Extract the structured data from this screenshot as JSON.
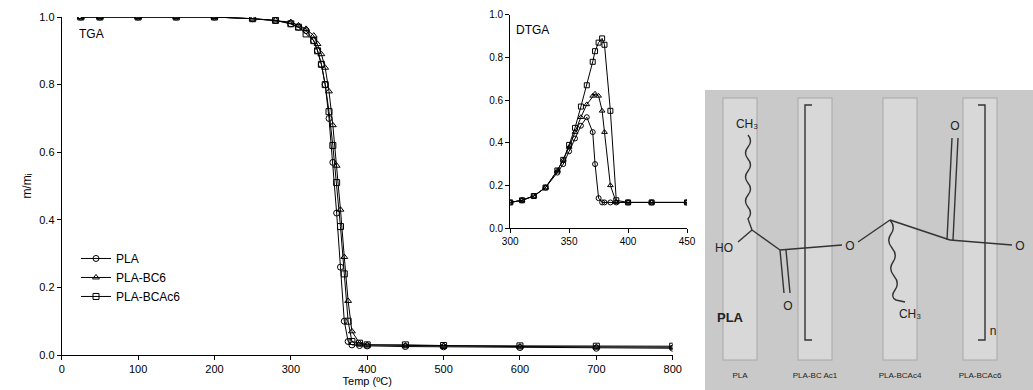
{
  "chart_data": [
    {
      "type": "scatter",
      "title": "TGA",
      "x_label": "Temp (ºC)",
      "y_label": "m/mᵢ",
      "xlim": [
        0,
        800
      ],
      "xticks": [
        0,
        100,
        200,
        300,
        400,
        500,
        600,
        700,
        800
      ],
      "ylim": [
        0,
        1
      ],
      "yticks": [
        {
          "value": 0,
          "label": "0.0"
        },
        0.2,
        0.4,
        0.6,
        0.8,
        {
          "value": 1,
          "label": "1.0"
        }
      ],
      "grid": false,
      "legend": "lower left",
      "series": [
        {
          "name": "PLA",
          "color": "#000000",
          "marker": "circle-open",
          "line_style": "solid",
          "x": [
            25,
            50,
            100,
            150,
            200,
            250,
            280,
            300,
            310,
            320,
            330,
            335,
            340,
            345,
            350,
            355,
            360,
            365,
            370,
            375,
            380,
            390,
            400,
            450,
            500,
            600,
            700,
            800
          ],
          "values": [
            1.0,
            1.0,
            1.0,
            1.0,
            1.0,
            0.995,
            0.99,
            0.98,
            0.97,
            0.96,
            0.93,
            0.9,
            0.86,
            0.8,
            0.7,
            0.57,
            0.42,
            0.26,
            0.1,
            0.04,
            0.03,
            0.028,
            0.027,
            0.025,
            0.024,
            0.022,
            0.02,
            0.02
          ]
        },
        {
          "name": "PLA-BC6",
          "color": "#000000",
          "marker": "triangle-up-open",
          "line_style": "solid",
          "x": [
            25,
            50,
            100,
            150,
            200,
            250,
            280,
            300,
            310,
            320,
            330,
            335,
            340,
            345,
            350,
            355,
            360,
            365,
            370,
            375,
            380,
            390,
            400,
            450,
            500,
            600,
            700,
            800
          ],
          "values": [
            1.0,
            1.0,
            1.0,
            1.0,
            1.0,
            0.995,
            0.99,
            0.985,
            0.975,
            0.965,
            0.945,
            0.92,
            0.89,
            0.85,
            0.78,
            0.68,
            0.56,
            0.43,
            0.29,
            0.16,
            0.07,
            0.035,
            0.03,
            0.028,
            0.027,
            0.025,
            0.024,
            0.023
          ]
        },
        {
          "name": "PLA-BCAc6",
          "color": "#000000",
          "marker": "square-open",
          "line_style": "solid",
          "x": [
            25,
            50,
            100,
            150,
            200,
            250,
            280,
            300,
            310,
            320,
            330,
            335,
            340,
            345,
            350,
            355,
            360,
            365,
            370,
            375,
            380,
            390,
            400,
            450,
            500,
            600,
            700,
            800
          ],
          "values": [
            1.0,
            1.0,
            1.0,
            1.0,
            1.0,
            0.995,
            0.99,
            0.98,
            0.97,
            0.95,
            0.93,
            0.9,
            0.86,
            0.8,
            0.72,
            0.62,
            0.51,
            0.38,
            0.24,
            0.1,
            0.04,
            0.035,
            0.03,
            0.03,
            0.028,
            0.027,
            0.026,
            0.026
          ]
        }
      ]
    },
    {
      "type": "scatter",
      "title": "DTGA",
      "xlim": [
        300,
        450
      ],
      "xticks": [
        300,
        350,
        400,
        450
      ],
      "ylim": [
        0,
        1
      ],
      "yticks": [
        {
          "value": 0,
          "label": "0.0"
        },
        0.2,
        0.4,
        0.6,
        0.8,
        {
          "value": 1,
          "label": "1.0"
        }
      ],
      "grid": false,
      "series": [
        {
          "name": "PLA",
          "color": "#000000",
          "marker": "circle-open",
          "line_style": "solid",
          "x": [
            300,
            310,
            320,
            330,
            340,
            345,
            350,
            355,
            360,
            365,
            370,
            372,
            375,
            378,
            380,
            385,
            390,
            400,
            420,
            450
          ],
          "values": [
            0.12,
            0.13,
            0.15,
            0.19,
            0.26,
            0.3,
            0.36,
            0.42,
            0.48,
            0.52,
            0.45,
            0.3,
            0.14,
            0.12,
            0.12,
            0.12,
            0.12,
            0.12,
            0.12,
            0.12
          ]
        },
        {
          "name": "PLA-BC6",
          "color": "#000000",
          "marker": "triangle-up-open",
          "line_style": "solid",
          "x": [
            300,
            310,
            320,
            330,
            340,
            345,
            350,
            355,
            360,
            365,
            370,
            372,
            375,
            378,
            380,
            385,
            390,
            400,
            420,
            450
          ],
          "values": [
            0.12,
            0.13,
            0.15,
            0.19,
            0.27,
            0.32,
            0.38,
            0.45,
            0.52,
            0.58,
            0.62,
            0.63,
            0.62,
            0.55,
            0.45,
            0.2,
            0.12,
            0.12,
            0.12,
            0.12
          ]
        },
        {
          "name": "PLA-BCAc6",
          "color": "#000000",
          "marker": "square-open",
          "line_style": "solid",
          "x": [
            300,
            310,
            320,
            330,
            340,
            345,
            350,
            355,
            360,
            365,
            370,
            372,
            375,
            378,
            380,
            385,
            390,
            400,
            420,
            450
          ],
          "values": [
            0.12,
            0.13,
            0.15,
            0.19,
            0.27,
            0.32,
            0.39,
            0.47,
            0.57,
            0.67,
            0.78,
            0.83,
            0.87,
            0.89,
            0.86,
            0.55,
            0.13,
            0.12,
            0.12,
            0.12
          ]
        }
      ]
    }
  ],
  "photo": {
    "structure": {
      "name": "PLA",
      "methyl_top": "CH₃",
      "hydroxyl": "HO",
      "carbonyl_lower": "O",
      "ester_oxygen": "O",
      "methyl_bottom": "CH₃",
      "carbonyl_upper": "O",
      "repeat": "n",
      "end_oxygen": "O"
    },
    "samples": [
      "PLA",
      "PLA-BC Ac1",
      "PLA-BCAc4",
      "PLA-BCAc6"
    ]
  }
}
